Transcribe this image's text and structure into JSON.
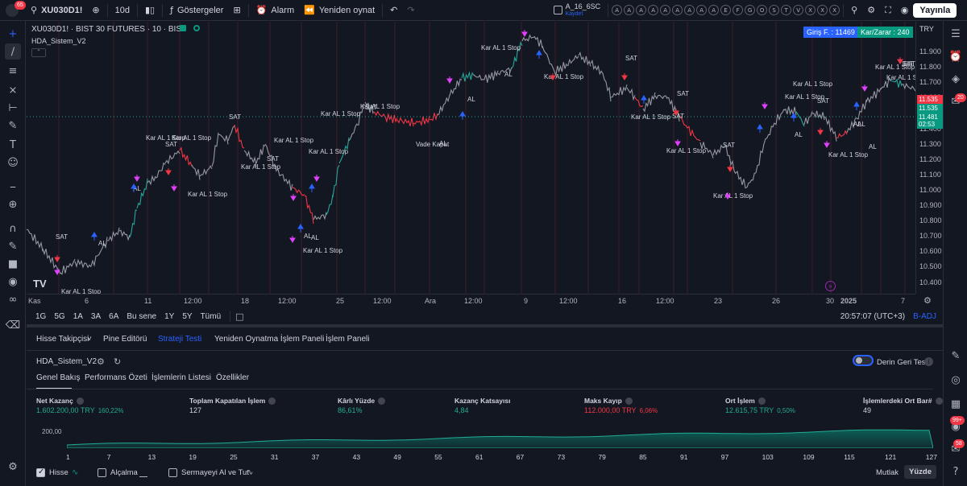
{
  "topbar": {
    "notif_count": "65",
    "symbol": "XU030D1!",
    "interval": "10d",
    "indicators": "Göstergeler",
    "alarm": "Alarm",
    "replay": "Yeniden oynat",
    "layout_name": "A_16_6SC",
    "layout_status": "Kaydet",
    "chips": [
      "A",
      "A",
      "A",
      "A",
      "A",
      "A",
      "A",
      "A",
      "A",
      "E",
      "F",
      "G",
      "O",
      "S",
      "T",
      "V",
      "X",
      "X",
      "X"
    ],
    "publish": "Yayınla"
  },
  "chart": {
    "title": "XU030D1! · BIST 30 FUTURES · 10 · BIST",
    "strategy_name": "HDA_Sistem_V2",
    "entry_label": "Giriş F. : 11469",
    "pnl_label": "Kar/Zarar : 240",
    "currency": "TRY",
    "last_price": "11.481",
    "countdown": "02:53",
    "price_tag_1": "11.535",
    "price_tag_2": "11.535",
    "price_labels": [
      "11.900",
      "11.800",
      "11.700",
      "11.600",
      "11.500",
      "11.400",
      "11.300",
      "11.200",
      "11.100",
      "11.000",
      "10.900",
      "10.800",
      "10.700",
      "10.600",
      "10.500",
      "10.400"
    ],
    "time_labels": [
      "Kas",
      "6",
      "11",
      "12:00",
      "18",
      "12:00",
      "25",
      "12:00",
      "Ara",
      "12:00",
      "9",
      "12:00",
      "16",
      "12:00",
      "23",
      "26",
      "30",
      "2025",
      "7"
    ],
    "annotations": [
      {
        "text": "SAT"
      },
      {
        "text": "Kar AL 1 Stop"
      },
      {
        "text": "AL"
      },
      {
        "text": "Kar AL 1 Stop"
      },
      {
        "text": "SAT"
      },
      {
        "text": "Kar AL 1 Stop"
      },
      {
        "text": "AL"
      },
      {
        "text": "Kar AL 1 Stop"
      },
      {
        "text": "SAT"
      },
      {
        "text": "Kar AL 1 Stop"
      },
      {
        "text": "SAT"
      },
      {
        "text": "Kar AL 1 Stop"
      },
      {
        "text": "AL"
      },
      {
        "text": "Kar AL 1 Stop"
      },
      {
        "text": "Kar AL 1 Stop"
      },
      {
        "text": "Kar AL 1 Stop"
      },
      {
        "text": "AL"
      },
      {
        "text": "SAT"
      },
      {
        "text": "Kar AL 1 Stop"
      },
      {
        "text": "AL"
      },
      {
        "text": "Vade Kapat"
      },
      {
        "text": "Kar AL 1 Stop"
      },
      {
        "text": "AL"
      },
      {
        "text": "SAT"
      },
      {
        "text": "Kar AL 1 Stop"
      },
      {
        "text": "AL"
      },
      {
        "text": "SAT"
      },
      {
        "text": "Kar AL 1 Stop"
      },
      {
        "text": "SAT"
      },
      {
        "text": "Kar AL 1 Stop"
      },
      {
        "text": "SAT"
      },
      {
        "text": "Kar AL 1 Stop"
      },
      {
        "text": "Kar AL 1 Stop"
      },
      {
        "text": "AL"
      },
      {
        "text": "Kar AL 1 Stop"
      },
      {
        "text": "SAT"
      },
      {
        "text": "AL"
      },
      {
        "text": "Kar AL 1 Stop"
      },
      {
        "text": "AL"
      },
      {
        "text": "Kar AL 1 Stop"
      },
      {
        "text": "SAT"
      },
      {
        "text": "AL"
      },
      {
        "text": "Kar AL 1 Stop"
      },
      {
        "text": "SAT"
      }
    ]
  },
  "range_bar": {
    "ranges": [
      "1G",
      "5G",
      "1A",
      "3A",
      "6A",
      "Bu sene",
      "1Y",
      "5Y",
      "Tümü"
    ],
    "clock": "20:57:07 (UTC+3)",
    "adj": "B-ADJ"
  },
  "panel": {
    "tabs": [
      "Hisse Takipçisi",
      "Pine Editörü",
      "Strateji Testi",
      "Yeniden Oynatma İşlem Paneli",
      "İşlem Paneli"
    ],
    "strategy": "HDA_Sistem_V2",
    "deep_test": "Derin Geri Test",
    "subtabs": [
      "Genel Bakış",
      "Performans Özeti",
      "İşlemlerin Listesi",
      "Özellikler"
    ],
    "stats": [
      {
        "label": "Net Kazanç",
        "value": "1.602.200,00 TRY",
        "sub": "160,22%",
        "color": "#22ab94"
      },
      {
        "label": "Toplam Kapatılan İşlem",
        "value": "127",
        "sub": "",
        "color": "#d1d4dc"
      },
      {
        "label": "Kârlı Yüzde",
        "value": "86,61%",
        "sub": "",
        "color": "#22ab94"
      },
      {
        "label": "Kazanç Katsayısı",
        "value": "4,84",
        "sub": "",
        "color": "#22ab94"
      },
      {
        "label": "Maks Kayıp",
        "value": "112.000,00 TRY",
        "sub": "6,06%",
        "color": "#f23645"
      },
      {
        "label": "Ort İşlem",
        "value": "12.615,75 TRY",
        "sub": "0,50%",
        "color": "#22ab94"
      },
      {
        "label": "İşlemlerdeki Ort Bar#",
        "value": "49",
        "sub": "",
        "color": "#d1d4dc"
      }
    ],
    "equity_label": "200,00",
    "equity_x": [
      "1",
      "7",
      "13",
      "19",
      "25",
      "31",
      "37",
      "43",
      "49",
      "55",
      "61",
      "67",
      "73",
      "79",
      "85",
      "91",
      "97",
      "103",
      "109",
      "115",
      "121",
      "127"
    ],
    "legend": {
      "hisse": "Hisse",
      "alcalma": "Alçalma",
      "buy_hold": "Sermayeyi Al ve Tut"
    },
    "modes": {
      "mutlak": "Mutlak",
      "yuzde": "Yüzde"
    }
  },
  "right_badges": {
    "alerts": "20",
    "notif": "99+",
    "chat": "58"
  }
}
